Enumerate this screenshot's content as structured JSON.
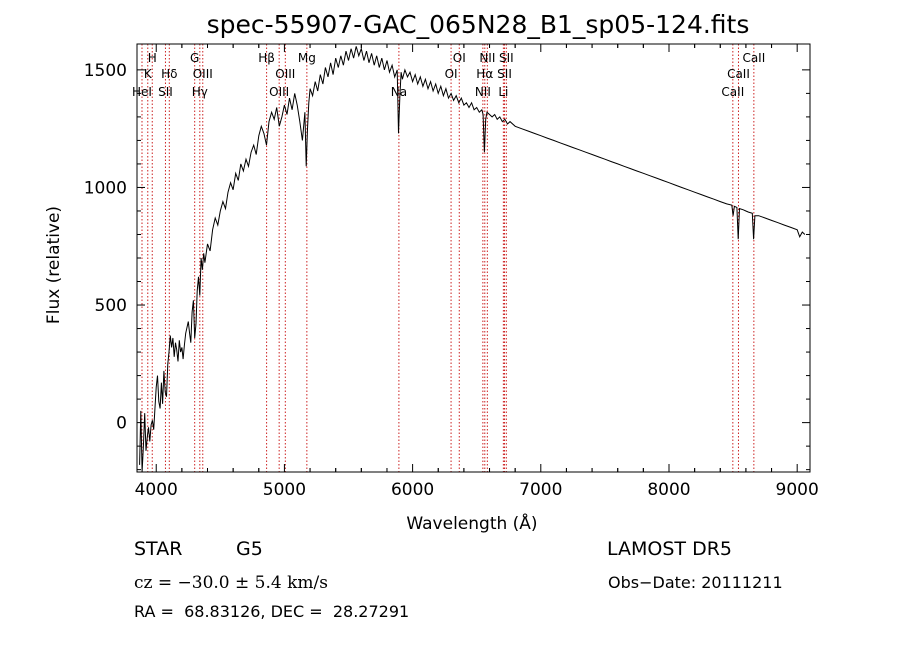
{
  "chart_data": {
    "type": "line",
    "title": "spec-55907-GAC_065N28_B1_sp05-124.fits",
    "xlabel": "Wavelength (Å)",
    "ylabel": "Flux (relative)",
    "xlim": [
      3850,
      9100
    ],
    "ylim": [
      -210,
      1610
    ],
    "xticks": [
      4000,
      5000,
      6000,
      7000,
      8000,
      9000
    ],
    "yticks": [
      0,
      500,
      1000,
      1500
    ],
    "line_color": "#000000",
    "marker_color": "#cc2222",
    "spectrum": [
      [
        3870,
        -180
      ],
      [
        3880,
        50
      ],
      [
        3890,
        -220
      ],
      [
        3900,
        -100
      ],
      [
        3910,
        40
      ],
      [
        3920,
        -120
      ],
      [
        3930,
        -60
      ],
      [
        3940,
        -20
      ],
      [
        3950,
        -80
      ],
      [
        3960,
        -10
      ],
      [
        3970,
        10
      ],
      [
        3980,
        -30
      ],
      [
        4000,
        150
      ],
      [
        4010,
        200
      ],
      [
        4020,
        90
      ],
      [
        4030,
        60
      ],
      [
        4040,
        170
      ],
      [
        4050,
        80
      ],
      [
        4060,
        220
      ],
      [
        4070,
        130
      ],
      [
        4080,
        110
      ],
      [
        4090,
        250
      ],
      [
        4100,
        300
      ],
      [
        4110,
        370
      ],
      [
        4120,
        320
      ],
      [
        4130,
        360
      ],
      [
        4140,
        280
      ],
      [
        4150,
        340
      ],
      [
        4160,
        310
      ],
      [
        4170,
        260
      ],
      [
        4180,
        350
      ],
      [
        4190,
        300
      ],
      [
        4200,
        320
      ],
      [
        4210,
        270
      ],
      [
        4220,
        330
      ],
      [
        4230,
        380
      ],
      [
        4250,
        430
      ],
      [
        4260,
        380
      ],
      [
        4270,
        340
      ],
      [
        4280,
        470
      ],
      [
        4290,
        520
      ],
      [
        4300,
        360
      ],
      [
        4310,
        420
      ],
      [
        4320,
        560
      ],
      [
        4330,
        620
      ],
      [
        4340,
        540
      ],
      [
        4350,
        700
      ],
      [
        4360,
        650
      ],
      [
        4370,
        720
      ],
      [
        4380,
        680
      ],
      [
        4400,
        760
      ],
      [
        4420,
        730
      ],
      [
        4440,
        820
      ],
      [
        4460,
        870
      ],
      [
        4480,
        840
      ],
      [
        4500,
        900
      ],
      [
        4520,
        940
      ],
      [
        4540,
        910
      ],
      [
        4560,
        980
      ],
      [
        4580,
        1020
      ],
      [
        4600,
        990
      ],
      [
        4620,
        1060
      ],
      [
        4640,
        1030
      ],
      [
        4660,
        1100
      ],
      [
        4680,
        1070
      ],
      [
        4700,
        1120
      ],
      [
        4720,
        1090
      ],
      [
        4740,
        1150
      ],
      [
        4760,
        1180
      ],
      [
        4780,
        1140
      ],
      [
        4800,
        1220
      ],
      [
        4820,
        1260
      ],
      [
        4840,
        1230
      ],
      [
        4860,
        1180
      ],
      [
        4880,
        1280
      ],
      [
        4900,
        1320
      ],
      [
        4920,
        1290
      ],
      [
        4940,
        1340
      ],
      [
        4960,
        1260
      ],
      [
        4980,
        1300
      ],
      [
        5000,
        1350
      ],
      [
        5020,
        1310
      ],
      [
        5040,
        1380
      ],
      [
        5060,
        1330
      ],
      [
        5080,
        1400
      ],
      [
        5100,
        1350
      ],
      [
        5120,
        1280
      ],
      [
        5140,
        1200
      ],
      [
        5160,
        1320
      ],
      [
        5170,
        1090
      ],
      [
        5180,
        1250
      ],
      [
        5190,
        1360
      ],
      [
        5200,
        1420
      ],
      [
        5220,
        1390
      ],
      [
        5240,
        1450
      ],
      [
        5260,
        1410
      ],
      [
        5280,
        1480
      ],
      [
        5300,
        1440
      ],
      [
        5320,
        1510
      ],
      [
        5340,
        1470
      ],
      [
        5360,
        1530
      ],
      [
        5380,
        1480
      ],
      [
        5400,
        1550
      ],
      [
        5420,
        1510
      ],
      [
        5440,
        1560
      ],
      [
        5460,
        1520
      ],
      [
        5480,
        1580
      ],
      [
        5500,
        1540
      ],
      [
        5520,
        1590
      ],
      [
        5540,
        1550
      ],
      [
        5560,
        1600
      ],
      [
        5580,
        1560
      ],
      [
        5600,
        1590
      ],
      [
        5620,
        1540
      ],
      [
        5640,
        1580
      ],
      [
        5660,
        1530
      ],
      [
        5680,
        1570
      ],
      [
        5700,
        1520
      ],
      [
        5720,
        1560
      ],
      [
        5740,
        1510
      ],
      [
        5760,
        1550
      ],
      [
        5780,
        1500
      ],
      [
        5800,
        1540
      ],
      [
        5820,
        1490
      ],
      [
        5840,
        1520
      ],
      [
        5860,
        1470
      ],
      [
        5880,
        1500
      ],
      [
        5890,
        1230
      ],
      [
        5900,
        1380
      ],
      [
        5910,
        1490
      ],
      [
        5920,
        1460
      ],
      [
        5940,
        1500
      ],
      [
        5960,
        1470
      ],
      [
        5980,
        1490
      ],
      [
        6000,
        1450
      ],
      [
        6020,
        1480
      ],
      [
        6040,
        1440
      ],
      [
        6060,
        1470
      ],
      [
        6080,
        1430
      ],
      [
        6100,
        1460
      ],
      [
        6120,
        1420
      ],
      [
        6140,
        1450
      ],
      [
        6160,
        1410
      ],
      [
        6180,
        1440
      ],
      [
        6200,
        1400
      ],
      [
        6220,
        1430
      ],
      [
        6240,
        1390
      ],
      [
        6260,
        1420
      ],
      [
        6280,
        1380
      ],
      [
        6300,
        1400
      ],
      [
        6320,
        1370
      ],
      [
        6340,
        1390
      ],
      [
        6360,
        1360
      ],
      [
        6380,
        1380
      ],
      [
        6400,
        1350
      ],
      [
        6420,
        1360
      ],
      [
        6440,
        1340
      ],
      [
        6460,
        1360
      ],
      [
        6480,
        1330
      ],
      [
        6500,
        1340
      ],
      [
        6520,
        1320
      ],
      [
        6540,
        1330
      ],
      [
        6550,
        1310
      ],
      [
        6560,
        1150
      ],
      [
        6570,
        1290
      ],
      [
        6580,
        1320
      ],
      [
        6600,
        1310
      ],
      [
        6620,
        1300
      ],
      [
        6640,
        1310
      ],
      [
        6660,
        1290
      ],
      [
        6680,
        1300
      ],
      [
        6700,
        1280
      ],
      [
        6720,
        1290
      ],
      [
        6740,
        1270
      ],
      [
        6760,
        1280
      ],
      [
        6800,
        1260
      ],
      [
        6850,
        1250
      ],
      [
        6900,
        1240
      ],
      [
        6950,
        1230
      ],
      [
        7000,
        1220
      ],
      [
        7050,
        1210
      ],
      [
        7100,
        1200
      ],
      [
        7150,
        1190
      ],
      [
        7200,
        1180
      ],
      [
        7250,
        1170
      ],
      [
        7300,
        1160
      ],
      [
        7350,
        1150
      ],
      [
        7400,
        1140
      ],
      [
        7450,
        1130
      ],
      [
        7500,
        1120
      ],
      [
        7550,
        1110
      ],
      [
        7600,
        1100
      ],
      [
        7650,
        1090
      ],
      [
        7700,
        1080
      ],
      [
        7750,
        1070
      ],
      [
        7800,
        1060
      ],
      [
        7850,
        1050
      ],
      [
        7900,
        1040
      ],
      [
        7950,
        1030
      ],
      [
        8000,
        1020
      ],
      [
        8050,
        1010
      ],
      [
        8100,
        1000
      ],
      [
        8150,
        990
      ],
      [
        8200,
        980
      ],
      [
        8250,
        970
      ],
      [
        8300,
        960
      ],
      [
        8350,
        950
      ],
      [
        8400,
        940
      ],
      [
        8450,
        930
      ],
      [
        8490,
        925
      ],
      [
        8500,
        880
      ],
      [
        8510,
        920
      ],
      [
        8530,
        915
      ],
      [
        8540,
        780
      ],
      [
        8550,
        910
      ],
      [
        8580,
        905
      ],
      [
        8600,
        900
      ],
      [
        8620,
        895
      ],
      [
        8650,
        890
      ],
      [
        8660,
        780
      ],
      [
        8670,
        880
      ],
      [
        8700,
        880
      ],
      [
        8750,
        870
      ],
      [
        8800,
        860
      ],
      [
        8850,
        850
      ],
      [
        8900,
        840
      ],
      [
        8950,
        830
      ],
      [
        9000,
        820
      ],
      [
        9020,
        790
      ],
      [
        9040,
        810
      ],
      [
        9060,
        800
      ]
    ],
    "lines": [
      {
        "wl": 3889,
        "label": "HeI",
        "row": 3
      },
      {
        "wl": 3934,
        "label": "K",
        "row": 2
      },
      {
        "wl": 3969,
        "label": "H",
        "row": 1
      },
      {
        "wl": 4072,
        "label": "SII",
        "row": 3
      },
      {
        "wl": 4102,
        "label": "Hδ",
        "row": 2
      },
      {
        "wl": 4300,
        "label": "G",
        "row": 1
      },
      {
        "wl": 4340,
        "label": "Hγ",
        "row": 3
      },
      {
        "wl": 4363,
        "label": "OIII",
        "row": 2
      },
      {
        "wl": 4861,
        "label": "Hβ",
        "row": 1
      },
      {
        "wl": 4959,
        "label": "OIII",
        "row": 3
      },
      {
        "wl": 5007,
        "label": "OIII",
        "row": 2
      },
      {
        "wl": 5175,
        "label": "Mg",
        "row": 1
      },
      {
        "wl": 5893,
        "label": "Na",
        "row": 3
      },
      {
        "wl": 6300,
        "label": "OI",
        "row": 2
      },
      {
        "wl": 6364,
        "label": "OI",
        "row": 1
      },
      {
        "wl": 6548,
        "label": "NII",
        "row": 3
      },
      {
        "wl": 6563,
        "label": "Hα",
        "row": 2
      },
      {
        "wl": 6583,
        "label": "NII",
        "row": 1
      },
      {
        "wl": 6708,
        "label": "Li",
        "row": 3
      },
      {
        "wl": 6717,
        "label": "SII",
        "row": 2
      },
      {
        "wl": 6731,
        "label": "SII",
        "row": 1
      },
      {
        "wl": 8498,
        "label": "CaII",
        "row": 3
      },
      {
        "wl": 8542,
        "label": "CaII",
        "row": 2
      },
      {
        "wl": 8662,
        "label": "CaII",
        "row": 1
      }
    ]
  },
  "info": {
    "class": "STAR",
    "subclass": "G5",
    "survey": "LAMOST DR5",
    "cz": "cz = −30.0 ± 5.4 km/s",
    "obs_date": "Obs−Date: 20111211",
    "radec": "RA =  68.83126, DEC =  28.27291"
  }
}
